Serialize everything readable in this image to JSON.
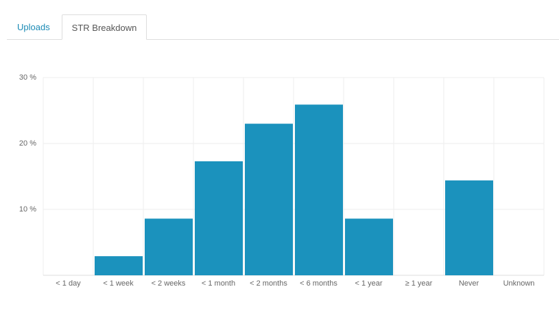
{
  "tabs": [
    "Uploads",
    "STR Breakdown"
  ],
  "chart_data": {
    "type": "bar",
    "categories": [
      "< 1 day",
      "< 1 week",
      "< 2 weeks",
      "< 1 month",
      "< 2 months",
      "< 6 months",
      "< 1 year",
      "≥ 1 year",
      "Never",
      "Unknown"
    ],
    "values": [
      0,
      2.9,
      8.6,
      17.3,
      23.0,
      25.9,
      8.6,
      0,
      14.4,
      0
    ],
    "color": "#1b92bd",
    "ylim": [
      0,
      30
    ],
    "yticks": [
      {
        "value": 10,
        "label": "10 %"
      },
      {
        "value": 20,
        "label": "20 %"
      },
      {
        "value": 30,
        "label": "30 %"
      }
    ],
    "grid": true
  }
}
